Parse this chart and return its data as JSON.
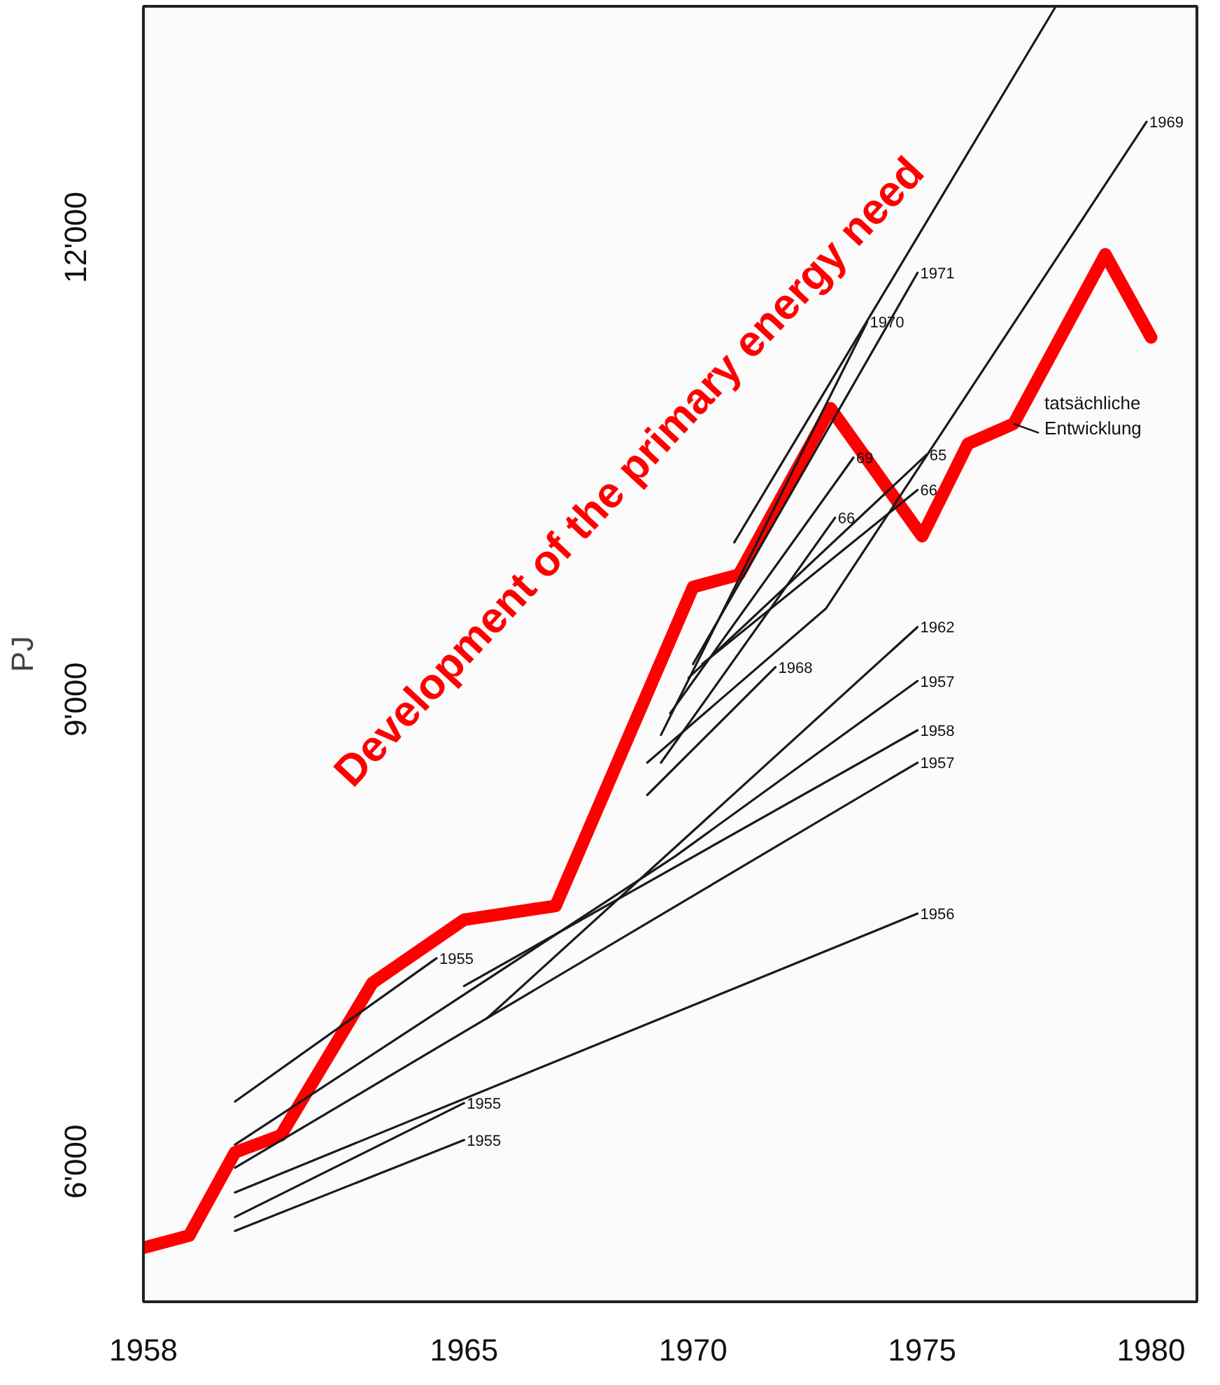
{
  "chart_data": {
    "type": "line",
    "title": "Development of the primary energy need",
    "ylabel": "PJ",
    "xlim": [
      1958,
      1981
    ],
    "ylim": [
      5090,
      13500
    ],
    "xticks": [
      1958,
      1965,
      1970,
      1975,
      1980
    ],
    "yticks": [
      {
        "value": 6000,
        "label": "6'000"
      },
      {
        "value": 9000,
        "label": "9'000"
      },
      {
        "value": 12000,
        "label": "12'000"
      }
    ],
    "grid": false,
    "legend": false,
    "marker": "none",
    "line_style": "solid",
    "series": [
      {
        "name": "tatsächliche Entwicklung",
        "color": "#ff0000",
        "x": [
          1958,
          1959,
          1960,
          1961,
          1963,
          1965,
          1967,
          1970,
          1971,
          1973,
          1975,
          1976,
          1977,
          1979,
          1980
        ],
        "values": [
          5440,
          5520,
          6060,
          6170,
          7160,
          7570,
          7660,
          9730,
          9810,
          10890,
          10060,
          10660,
          10790,
          11890,
          11350
        ]
      },
      {
        "name": "1955",
        "color": "#1a1a1a",
        "x": [
          1960.0,
          1964.4
        ],
        "values": [
          6390,
          7320
        ]
      },
      {
        "name": "1957",
        "color": "#1a1a1a",
        "x": [
          1960.0,
          1969.6,
          1974.9
        ],
        "values": [
          6110,
          7980,
          9120
        ]
      },
      {
        "name": "1957",
        "color": "#1a1a1a",
        "x": [
          1960.0,
          1974.9
        ],
        "values": [
          5960,
          8590
        ]
      },
      {
        "name": "1956",
        "color": "#1a1a1a",
        "x": [
          1960.0,
          1974.9
        ],
        "values": [
          5800,
          7610
        ]
      },
      {
        "name": "1955",
        "color": "#1a1a1a",
        "x": [
          1960.0,
          1965.0
        ],
        "values": [
          5640,
          6380
        ]
      },
      {
        "name": "1955",
        "color": "#1a1a1a",
        "x": [
          1960.0,
          1965.0
        ],
        "values": [
          5550,
          6140
        ]
      },
      {
        "name": "1958",
        "color": "#1a1a1a",
        "x": [
          1965.0,
          1974.9
        ],
        "values": [
          7140,
          8800
        ]
      },
      {
        "name": "1962",
        "color": "#1a1a1a",
        "x": [
          1965.5,
          1974.9
        ],
        "values": [
          6930,
          9470
        ]
      },
      {
        "name": "1968",
        "color": "#1a1a1a",
        "x": [
          1969.0,
          1971.8
        ],
        "values": [
          8380,
          9210
        ]
      },
      {
        "name": "1969",
        "color": "#1a1a1a",
        "x": [
          1969.0,
          1972.9,
          1979.9
        ],
        "values": [
          8590,
          9590,
          12750
        ]
      },
      {
        "name": "1971",
        "color": "#1a1a1a",
        "x": [
          1970.0,
          1974.9
        ],
        "values": [
          9230,
          11770
        ]
      },
      {
        "name": "1970",
        "color": "#1a1a1a",
        "x": [
          1969.3,
          1973.8
        ],
        "values": [
          8770,
          11450
        ]
      },
      {
        "color": "#1a1a1a",
        "x": [
          1970.9,
          1977.9
        ],
        "values": [
          10020,
          13490
        ]
      },
      {
        "name": "69",
        "color": "#1a1a1a",
        "x": [
          1969.5,
          1973.5
        ],
        "values": [
          8910,
          10570
        ]
      },
      {
        "name": "66",
        "color": "#1a1a1a",
        "x": [
          1969.3,
          1973.1
        ],
        "values": [
          8590,
          10180
        ]
      },
      {
        "name": "65",
        "color": "#1a1a1a",
        "x": [
          1969.9,
          1975.1
        ],
        "values": [
          9140,
          10590
        ]
      },
      {
        "name": "66",
        "color": "#1a1a1a",
        "x": [
          1970.2,
          1974.9
        ],
        "values": [
          9230,
          10360
        ]
      }
    ]
  }
}
